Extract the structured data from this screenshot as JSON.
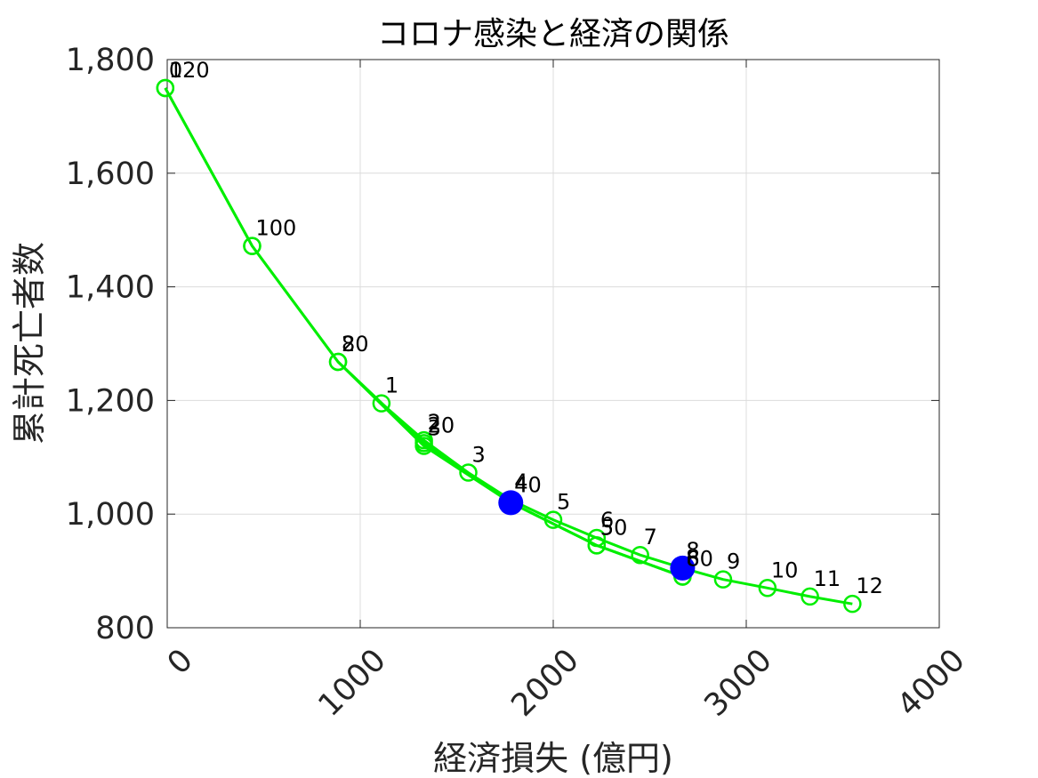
{
  "chart_data": {
    "type": "line",
    "title": "コロナ感染と経済の関係",
    "xlabel": "経済損失 (億円)",
    "ylabel": "累計死亡者数",
    "xlim": [
      0,
      4000
    ],
    "ylim": [
      800,
      1800
    ],
    "xticks": [
      0,
      1000,
      2000,
      3000,
      4000
    ],
    "xtick_labels": [
      "0",
      "1000",
      "2000",
      "3000",
      "4000"
    ],
    "yticks": [
      800,
      1000,
      1200,
      1400,
      1600,
      1800
    ],
    "ytick_labels": [
      "800",
      "1,000",
      "1,200",
      "1,400",
      "1,600",
      "1,800"
    ],
    "grid": true,
    "line_color": "#00ee00",
    "highlight_color": "#0000ff",
    "series": [
      {
        "points": [
          {
            "x": -10,
            "y": 1750,
            "label": "0"
          },
          {
            "x": 440,
            "y": 1472,
            "label": "1"
          },
          {
            "x": 885,
            "y": 1268,
            "label": "2"
          },
          {
            "x": 1330,
            "y": 1120,
            "label": "3"
          },
          {
            "x": 1780,
            "y": 1020,
            "label": "4"
          },
          {
            "x": 2225,
            "y": 945,
            "label": "5"
          },
          {
            "x": 2670,
            "y": 890,
            "label": "6"
          }
        ]
      },
      {
        "points": [
          {
            "x": -10,
            "y": 1750,
            "label": "120"
          },
          {
            "x": 440,
            "y": 1472,
            "label": "100"
          },
          {
            "x": 885,
            "y": 1268,
            "label": "80"
          },
          {
            "x": 1330,
            "y": 1125,
            "label": "20"
          },
          {
            "x": 1780,
            "y": 1020,
            "label": "40"
          },
          {
            "x": 2225,
            "y": 945,
            "label": "50"
          },
          {
            "x": 2670,
            "y": 890,
            "label": "80"
          }
        ]
      },
      {
        "points": [
          {
            "x": 1110,
            "y": 1195,
            "label": "1"
          },
          {
            "x": 1330,
            "y": 1130,
            "label": "2"
          },
          {
            "x": 1560,
            "y": 1073,
            "label": "3"
          },
          {
            "x": 1780,
            "y": 1025,
            "label": "4"
          },
          {
            "x": 2000,
            "y": 990,
            "label": "5"
          },
          {
            "x": 2225,
            "y": 958,
            "label": "6"
          },
          {
            "x": 2450,
            "y": 928,
            "label": "7"
          },
          {
            "x": 2670,
            "y": 905,
            "label": "8"
          },
          {
            "x": 2880,
            "y": 885,
            "label": "9"
          },
          {
            "x": 3110,
            "y": 870,
            "label": "10"
          },
          {
            "x": 3330,
            "y": 855,
            "label": "11"
          },
          {
            "x": 3550,
            "y": 842,
            "label": "12"
          }
        ]
      }
    ],
    "highlighted_points": [
      {
        "x": 1780,
        "y": 1020
      },
      {
        "x": 2670,
        "y": 905
      }
    ]
  }
}
